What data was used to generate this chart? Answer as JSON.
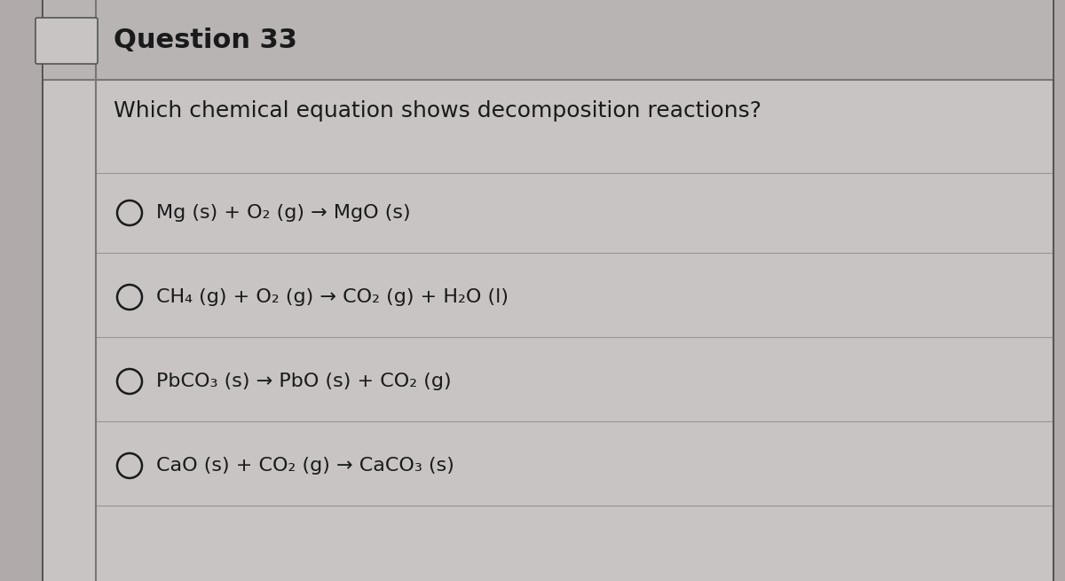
{
  "title": "Question 33",
  "question": "Which chemical equation shows decomposition reactions?",
  "options": [
    "Mg (s) + O₂ (g) → MgO (s)",
    "CH₄ (g) + O₂ (g) → CO₂ (g) + H₂O (l)",
    "PbCO₃ (s) → PbO (s) + CO₂ (g)",
    "CaO (s) + CO₂ (g) → CaCO₃ (s)"
  ],
  "bg_color": "#b0aaaa",
  "card_color": "#c8c4c4",
  "header_color": "#b8b4b4",
  "text_color": "#1a1a1a",
  "border_color": "#555555",
  "separator_color": "#777777",
  "title_fontsize": 22,
  "question_fontsize": 18,
  "option_fontsize": 16,
  "fig_width": 12.0,
  "fig_height": 6.55
}
